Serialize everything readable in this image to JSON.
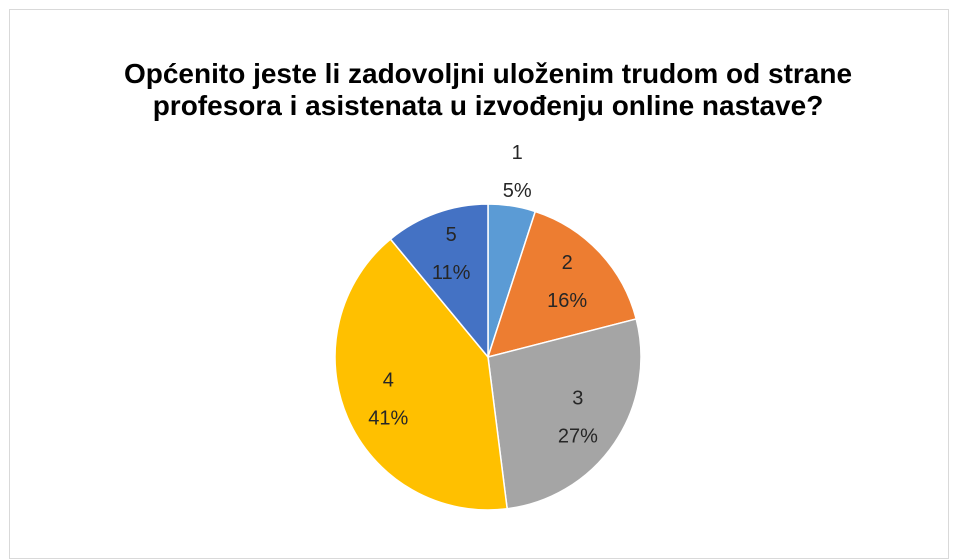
{
  "chart_data": {
    "type": "pie",
    "title": "Općenito jeste li zadovoljni uloženim trudom od strane profesora i asistenata u izvođenju online nastave?",
    "categories": [
      "1",
      "2",
      "3",
      "4",
      "5"
    ],
    "values": [
      5,
      16,
      27,
      41,
      11
    ],
    "value_labels": [
      "5%",
      "16%",
      "27%",
      "41%",
      "11%"
    ],
    "colors": [
      "#5b9bd5",
      "#ed7d31",
      "#a5a5a5",
      "#ffc000",
      "#4472c4"
    ]
  }
}
